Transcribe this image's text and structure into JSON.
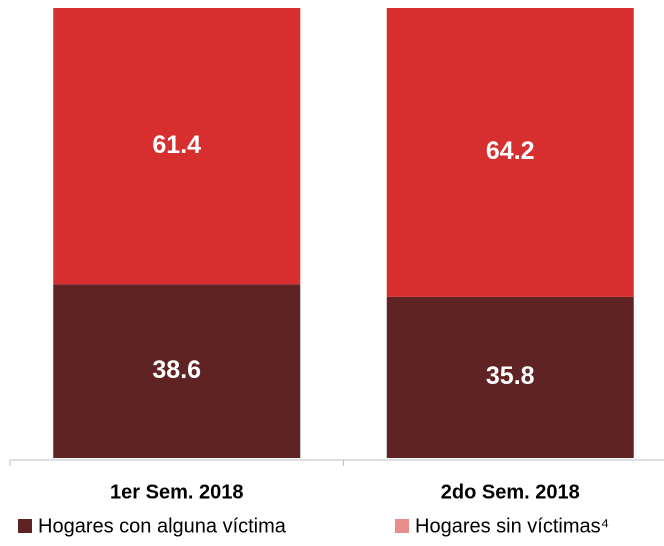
{
  "chart_data": {
    "type": "stacked_bar",
    "categories": [
      "1er Sem.  2018",
      "2do  Sem.  2018"
    ],
    "series": [
      {
        "name": "Hogares con alguna víctima",
        "color": "#5f2324",
        "values": [
          38.6,
          35.8
        ]
      },
      {
        "name": "Hogares sin víctimas⁴",
        "color": "#d72f2f",
        "legend_color": "#e88d8c",
        "values": [
          61.4,
          64.2
        ]
      }
    ],
    "ylim": [
      0,
      100
    ]
  }
}
